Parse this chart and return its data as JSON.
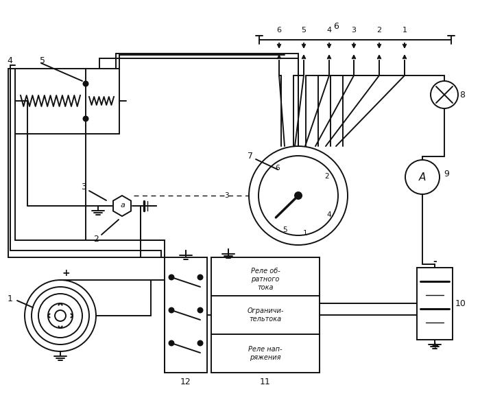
{
  "bg": "#ffffff",
  "lc": "#111111",
  "lw": 1.4,
  "box11_text": [
    [
      "Реле об-",
      "ратного",
      "тока"
    ],
    [
      "Ограничи-",
      "тельтока"
    ],
    [
      "Реле нап-",
      "ряжения"
    ]
  ],
  "spark_nums": [
    "6",
    "5",
    "4",
    "3",
    "2",
    "1"
  ],
  "dist_inner_labels": [
    "6",
    "2",
    "4",
    "1",
    "5",
    "3"
  ],
  "top_label": "6",
  "label_1": "1",
  "label_2": "2",
  "label_3": "3",
  "label_4": "4",
  "label_5": "5",
  "label_6": "6",
  "label_7": "7",
  "label_8": "8",
  "label_9": "9",
  "label_10": "10",
  "label_11": "11",
  "label_12": "12"
}
